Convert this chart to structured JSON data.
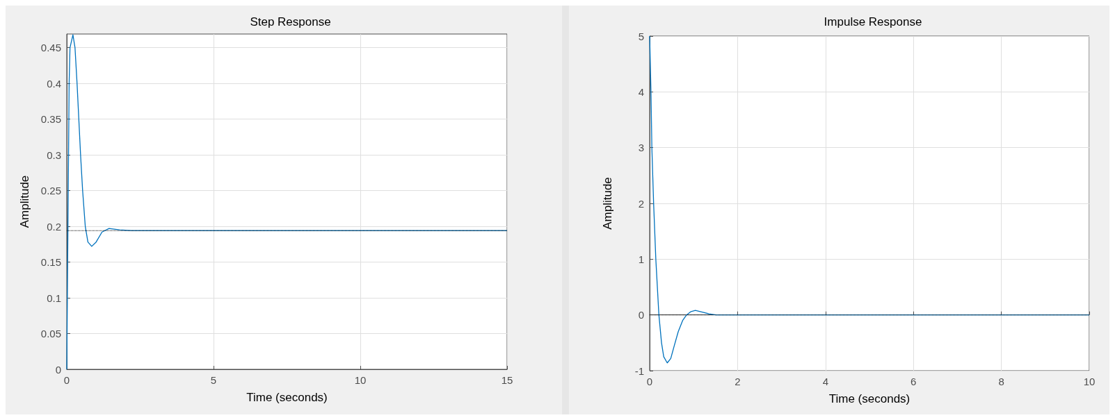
{
  "chart_data": [
    {
      "type": "line",
      "title": "Step Response",
      "xlabel": "Time (seconds)",
      "ylabel": "Amplitude",
      "xlim": [
        0,
        15
      ],
      "xticks": [
        0,
        5,
        10,
        15
      ],
      "ylim": [
        0,
        0.469
      ],
      "yticks": [
        0,
        0.05,
        0.1,
        0.15,
        0.2,
        0.25,
        0.3,
        0.35,
        0.4,
        0.45
      ],
      "grid": true,
      "line_style": "solid",
      "marker": "none",
      "series": [
        {
          "color": "#0072bd",
          "x": [
            0,
            0.02,
            0.04,
            0.06,
            0.08,
            0.11,
            0.21,
            0.28,
            0.35,
            0.47,
            0.54,
            0.63,
            0.72,
            0.85,
            1.0,
            1.2,
            1.44,
            1.8,
            2.2,
            15
          ],
          "values": [
            0,
            0.1,
            0.2,
            0.3,
            0.4,
            0.45,
            0.468,
            0.45,
            0.4,
            0.3,
            0.25,
            0.2,
            0.178,
            0.172,
            0.178,
            0.192,
            0.197,
            0.195,
            0.194,
            0.194
          ]
        }
      ],
      "ref_lines": [
        {
          "axis": "y",
          "value": 0.194,
          "color": "#000000",
          "line_style": "dotted"
        }
      ]
    },
    {
      "type": "line",
      "title": "Impulse Response",
      "xlabel": "Time (seconds)",
      "ylabel": "Amplitude",
      "xlim": [
        0,
        10
      ],
      "xticks": [
        0,
        2,
        4,
        6,
        8,
        10
      ],
      "ylim": [
        -1,
        5
      ],
      "yticks": [
        -1,
        0,
        1,
        2,
        3,
        4,
        5
      ],
      "grid": true,
      "line_style": "solid",
      "marker": "none",
      "series": [
        {
          "color": "#0072bd",
          "x": [
            0,
            0.03,
            0.05,
            0.09,
            0.14,
            0.21,
            0.27,
            0.32,
            0.4,
            0.48,
            0.56,
            0.65,
            0.75,
            0.84,
            0.94,
            1.04,
            1.2,
            1.35,
            1.51,
            2.2,
            10
          ],
          "values": [
            5,
            4,
            3,
            2,
            1,
            0,
            -0.5,
            -0.75,
            -0.86,
            -0.78,
            -0.55,
            -0.3,
            -0.1,
            0,
            0.06,
            0.08,
            0.05,
            0.02,
            0,
            0,
            0
          ]
        }
      ],
      "ref_lines": [
        {
          "axis": "y",
          "value": 0,
          "color": "#000000",
          "line_style": "dotted"
        }
      ]
    }
  ]
}
